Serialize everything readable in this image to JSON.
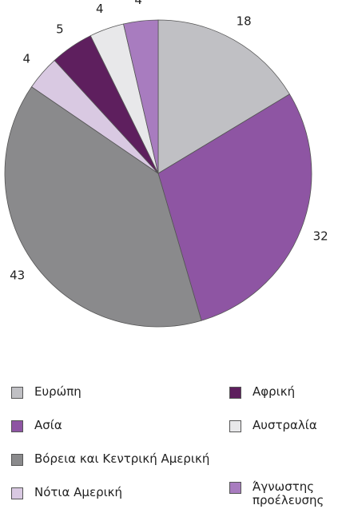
{
  "chart_data": {
    "type": "pie",
    "categories": [
      "Ευρώπη",
      "Ασία",
      "Βόρεια και Κεντρική Αμερική",
      "Νότια Αμερική",
      "Αφρική",
      "Αυστραλία",
      "Άγνωστης προέλευσης"
    ],
    "values": [
      18,
      32,
      43,
      4,
      5,
      4,
      4
    ],
    "colors": [
      "#c0c0c4",
      "#8e55a3",
      "#8a8a8c",
      "#d9c9e2",
      "#5e1f5e",
      "#e8e8ea",
      "#a87cbf"
    ]
  }
}
